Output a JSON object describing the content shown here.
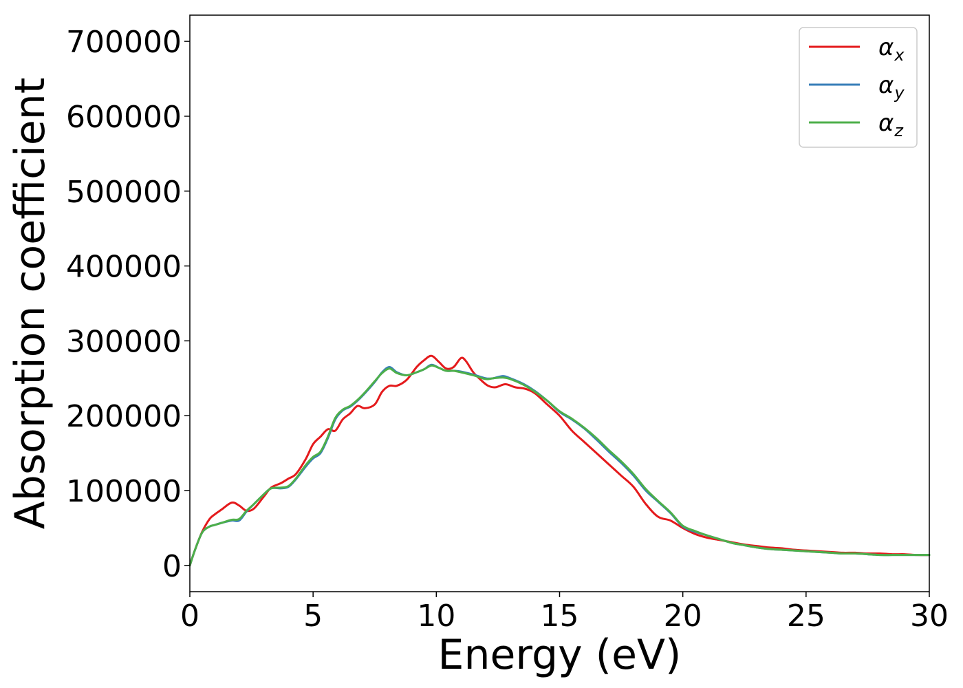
{
  "chart_data": {
    "type": "line",
    "title": "",
    "xlabel": "Energy (eV)",
    "ylabel": "Absorption coefficient",
    "xlim": [
      0,
      30
    ],
    "ylim": [
      -35000,
      735000
    ],
    "xticks": [
      0,
      5,
      10,
      15,
      20,
      25,
      30
    ],
    "xtick_labels": [
      "0",
      "5",
      "10",
      "15",
      "20",
      "25",
      "30"
    ],
    "yticks": [
      0,
      100000,
      200000,
      300000,
      400000,
      500000,
      600000,
      700000
    ],
    "ytick_labels": [
      "0",
      "100000",
      "200000",
      "300000",
      "400000",
      "500000",
      "600000",
      "700000"
    ],
    "grid": false,
    "legend_position": "top-right",
    "series": [
      {
        "name": "α",
        "subscript": "x",
        "color": "#e41a1c",
        "x": [
          0,
          0.2,
          0.5,
          0.8,
          1.0,
          1.3,
          1.7,
          2.0,
          2.3,
          2.6,
          3.0,
          3.3,
          3.7,
          4.0,
          4.3,
          4.7,
          5.0,
          5.3,
          5.6,
          5.9,
          6.2,
          6.5,
          6.8,
          7.1,
          7.5,
          7.8,
          8.1,
          8.4,
          8.8,
          9.2,
          9.5,
          9.8,
          10.1,
          10.4,
          10.7,
          11.0,
          11.2,
          11.5,
          11.8,
          12.1,
          12.4,
          12.8,
          13.2,
          13.6,
          14.0,
          14.5,
          15.0,
          15.5,
          16.0,
          16.5,
          17.0,
          17.5,
          18.0,
          18.5,
          19.0,
          19.5,
          20.0,
          20.5,
          21.0,
          21.5,
          22.0,
          22.5,
          23.0,
          23.5,
          24.0,
          24.5,
          25.0,
          25.5,
          26.0,
          26.5,
          27.0,
          27.5,
          28.0,
          28.5,
          29.0,
          29.5,
          30.0
        ],
        "values": [
          0,
          20000,
          45000,
          62000,
          68000,
          75000,
          84000,
          80000,
          73000,
          76000,
          92000,
          104000,
          110000,
          116000,
          122000,
          142000,
          162000,
          172000,
          182000,
          180000,
          195000,
          203000,
          213000,
          210000,
          215000,
          232000,
          240000,
          240000,
          248000,
          265000,
          274000,
          280000,
          272000,
          263000,
          265000,
          277000,
          273000,
          258000,
          248000,
          240000,
          238000,
          242000,
          238000,
          236000,
          230000,
          215000,
          200000,
          180000,
          165000,
          150000,
          135000,
          120000,
          105000,
          82000,
          65000,
          60000,
          50000,
          42000,
          37000,
          34000,
          31000,
          28000,
          26000,
          24000,
          23000,
          21000,
          20000,
          19000,
          18000,
          17000,
          17000,
          16000,
          16000,
          15000,
          15000,
          14000,
          14000
        ]
      },
      {
        "name": "α",
        "subscript": "y",
        "color": "#377eb8",
        "x": [
          0,
          0.2,
          0.5,
          0.8,
          1.0,
          1.3,
          1.7,
          2.0,
          2.3,
          2.6,
          3.0,
          3.3,
          3.7,
          4.0,
          4.3,
          4.7,
          5.0,
          5.3,
          5.6,
          5.9,
          6.2,
          6.5,
          6.8,
          7.1,
          7.5,
          7.8,
          8.1,
          8.4,
          8.8,
          9.2,
          9.5,
          9.8,
          10.1,
          10.4,
          10.7,
          11.0,
          11.5,
          12.0,
          12.3,
          12.7,
          13.0,
          13.5,
          14.0,
          14.5,
          15.0,
          15.5,
          16.0,
          16.5,
          17.0,
          17.5,
          18.0,
          18.5,
          19.0,
          19.5,
          20.0,
          20.5,
          21.0,
          21.5,
          22.0,
          22.5,
          23.0,
          23.5,
          24.0,
          24.5,
          25.0,
          25.5,
          26.0,
          26.5,
          27.0,
          27.5,
          28.0,
          28.5,
          29.0,
          29.5,
          30.0
        ],
        "values": [
          0,
          20000,
          44000,
          52000,
          54000,
          57000,
          60000,
          60000,
          72000,
          82000,
          95000,
          103000,
          103000,
          105000,
          115000,
          132000,
          143000,
          150000,
          170000,
          195000,
          207000,
          212000,
          220000,
          230000,
          245000,
          258000,
          265000,
          258000,
          254000,
          258000,
          262000,
          268000,
          264000,
          260000,
          260000,
          259000,
          255000,
          250000,
          250000,
          253000,
          250000,
          243000,
          233000,
          220000,
          205000,
          195000,
          183000,
          168000,
          152000,
          137000,
          120000,
          100000,
          85000,
          70000,
          52000,
          45000,
          40000,
          35000,
          30000,
          27000,
          24000,
          22000,
          21000,
          20000,
          19000,
          18000,
          17000,
          16000,
          16000,
          15000,
          14000,
          14000,
          14000,
          14000,
          14000
        ]
      },
      {
        "name": "α",
        "subscript": "z",
        "color": "#4daf4a",
        "x": [
          0,
          0.2,
          0.5,
          0.8,
          1.0,
          1.3,
          1.7,
          2.0,
          2.3,
          2.6,
          3.0,
          3.3,
          3.7,
          4.0,
          4.3,
          4.7,
          5.0,
          5.3,
          5.6,
          5.9,
          6.2,
          6.5,
          6.8,
          7.1,
          7.5,
          7.8,
          8.1,
          8.4,
          8.8,
          9.2,
          9.5,
          9.8,
          10.1,
          10.4,
          10.7,
          11.0,
          11.5,
          12.0,
          12.3,
          12.7,
          13.0,
          13.5,
          14.0,
          14.5,
          15.0,
          15.5,
          16.0,
          16.5,
          17.0,
          17.5,
          18.0,
          18.5,
          19.0,
          19.5,
          20.0,
          20.5,
          21.0,
          21.5,
          22.0,
          22.5,
          23.0,
          23.5,
          24.0,
          24.5,
          25.0,
          25.5,
          26.0,
          26.5,
          27.0,
          27.5,
          28.0,
          28.5,
          29.0,
          29.5,
          30.0
        ],
        "values": [
          0,
          20000,
          44000,
          52000,
          54000,
          57000,
          61000,
          62000,
          73000,
          82000,
          95000,
          103000,
          104000,
          106000,
          116000,
          134000,
          145000,
          152000,
          172000,
          197000,
          208000,
          213000,
          221000,
          231000,
          246000,
          257000,
          263000,
          257000,
          254000,
          258000,
          262000,
          267000,
          264000,
          260000,
          260000,
          258000,
          254000,
          249000,
          250000,
          251000,
          249000,
          242000,
          232000,
          220000,
          206000,
          196000,
          184000,
          170000,
          154000,
          139000,
          122000,
          102000,
          86000,
          71000,
          53000,
          46000,
          40000,
          35000,
          30000,
          27000,
          24000,
          22000,
          21000,
          20000,
          19000,
          18000,
          17000,
          16000,
          16000,
          15000,
          14000,
          14000,
          14000,
          14000,
          14000
        ]
      }
    ]
  }
}
